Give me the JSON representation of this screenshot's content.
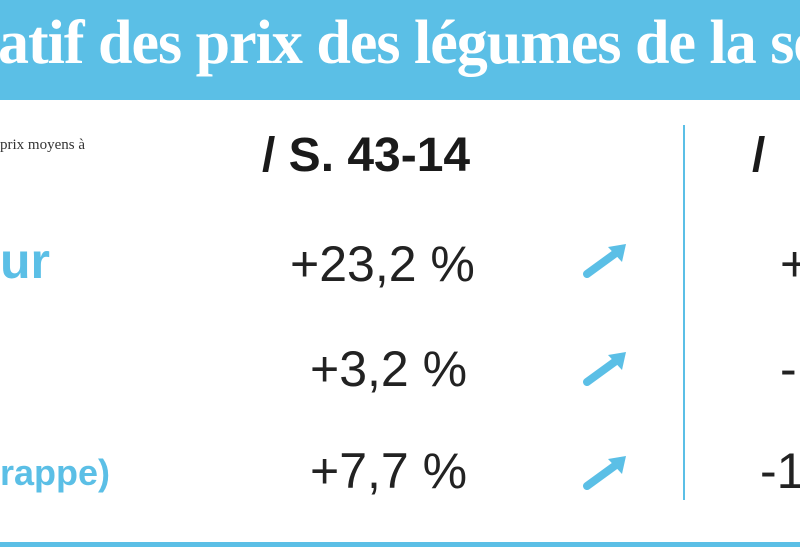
{
  "header": {
    "title": "atif des prix des légumes de la ser"
  },
  "subhead": "prix moyens à",
  "columns": {
    "first": "/ S. 43-14",
    "second": "/"
  },
  "rows": [
    {
      "label": "ur",
      "change": "+23,2 %",
      "change2": "+",
      "trend": "arrow-up-right-icon"
    },
    {
      "label": "",
      "change": "+3,2 %",
      "change2": "-",
      "trend": "arrow-up-right-icon"
    },
    {
      "label": "rappe)",
      "change": "+7,7 %",
      "change2": "-1",
      "trend": "arrow-up-right-icon"
    }
  ],
  "colors": {
    "accent": "#5bbfe6",
    "text": "#222222"
  }
}
